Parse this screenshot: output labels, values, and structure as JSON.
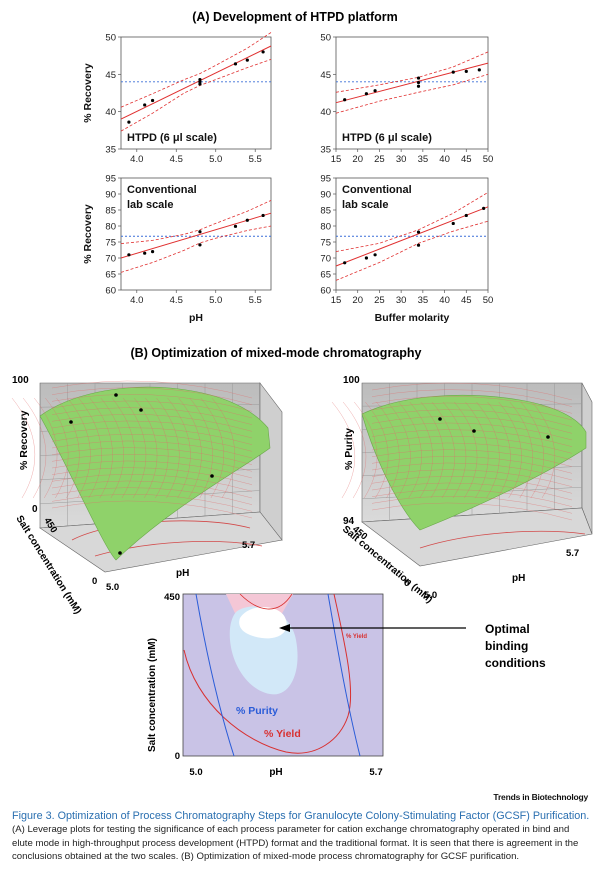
{
  "panelA": {
    "title": "(A) Development of  HTPD platform",
    "plots": [
      {
        "id": "a1",
        "ylabel": "% Recovery",
        "xlabel": "",
        "xlim": [
          3.8,
          5.7
        ],
        "ylim": [
          35,
          50
        ],
        "xticks": [
          4.0,
          4.5,
          5.0,
          5.5
        ],
        "yticks": [
          35,
          40,
          45,
          50
        ],
        "tick_labels_x": [
          "4.0",
          "4.5",
          "5.0",
          "5.5"
        ],
        "tick_labels_y": [
          "35",
          "40",
          "45",
          "50"
        ],
        "annotation": [
          "HTPD (6 μl scale)"
        ],
        "mean": 44.0,
        "fit": {
          "x": [
            3.8,
            5.7
          ],
          "y": [
            39.0,
            48.8
          ]
        },
        "ci_upper": {
          "x": [
            3.8,
            4.2,
            4.6,
            4.8,
            5.0,
            5.4,
            5.7
          ],
          "y": [
            40.6,
            42.4,
            44.3,
            45.1,
            46.2,
            48.5,
            50.6
          ]
        },
        "ci_lower": {
          "x": [
            3.8,
            4.2,
            4.6,
            4.8,
            5.0,
            5.4,
            5.7
          ],
          "y": [
            37.4,
            39.8,
            42.5,
            43.5,
            44.3,
            45.9,
            47.0
          ]
        },
        "points": {
          "x": [
            3.9,
            4.1,
            4.2,
            4.8,
            4.8,
            4.8,
            5.25,
            5.4,
            5.6
          ],
          "y": [
            38.6,
            40.9,
            41.5,
            44.3,
            44.0,
            43.7,
            46.4,
            46.9,
            48.0
          ]
        }
      },
      {
        "id": "a2",
        "ylabel": "",
        "xlabel": "",
        "xlim": [
          15,
          50
        ],
        "ylim": [
          35,
          50
        ],
        "xticks": [
          15,
          20,
          25,
          30,
          35,
          40,
          45,
          50
        ],
        "yticks": [
          35,
          40,
          45,
          50
        ],
        "tick_labels_x": [
          "15",
          "20",
          "25",
          "30",
          "35",
          "40",
          "45",
          "50"
        ],
        "tick_labels_y": [
          "35",
          "40",
          "45",
          "50"
        ],
        "annotation": [
          "HTPD (6 μl scale)"
        ],
        "mean": 44.0,
        "fit": {
          "x": [
            15,
            50
          ],
          "y": [
            41.2,
            46.5
          ]
        },
        "ci_upper": {
          "x": [
            15,
            25,
            34,
            42,
            50
          ],
          "y": [
            42.6,
            43.6,
            44.6,
            46.0,
            48.0
          ]
        },
        "ci_lower": {
          "x": [
            15,
            25,
            34,
            42,
            50
          ],
          "y": [
            39.8,
            41.4,
            42.6,
            43.6,
            45.0
          ]
        },
        "points": {
          "x": [
            17,
            22,
            24,
            34,
            34,
            34,
            42,
            45,
            48
          ],
          "y": [
            41.6,
            42.4,
            42.8,
            44.5,
            43.9,
            43.4,
            45.3,
            45.4,
            45.6
          ]
        }
      },
      {
        "id": "a3",
        "ylabel": "% Recovery",
        "xlabel": "pH",
        "xlim": [
          3.8,
          5.7
        ],
        "ylim": [
          60,
          95
        ],
        "xticks": [
          4.0,
          4.5,
          5.0,
          5.5
        ],
        "yticks": [
          60,
          65,
          70,
          75,
          80,
          85,
          90,
          95
        ],
        "tick_labels_x": [
          "4.0",
          "4.5",
          "5.0",
          "5.5"
        ],
        "tick_labels_y": [
          "60",
          "65",
          "70",
          "75",
          "80",
          "85",
          "90",
          "95"
        ],
        "annotation": [
          "Conventional",
          "lab scale"
        ],
        "mean": 76.8,
        "fit": {
          "x": [
            3.8,
            5.7
          ],
          "y": [
            70.0,
            84.0
          ]
        },
        "ci_upper": {
          "x": [
            3.8,
            4.2,
            4.6,
            4.8,
            5.0,
            5.4,
            5.7
          ],
          "y": [
            74.5,
            75.5,
            77.4,
            78.8,
            80.8,
            84.6,
            88.0
          ]
        },
        "ci_lower": {
          "x": [
            3.8,
            4.2,
            4.6,
            4.8,
            5.0,
            5.4,
            5.7
          ],
          "y": [
            65.5,
            68.6,
            72.4,
            74.7,
            76.2,
            78.6,
            80.0
          ]
        },
        "points": {
          "x": [
            3.9,
            4.1,
            4.2,
            4.8,
            4.8,
            5.25,
            5.4,
            5.6
          ],
          "y": [
            71.0,
            71.5,
            72.0,
            78.2,
            74.1,
            79.9,
            81.8,
            83.3
          ]
        }
      },
      {
        "id": "a4",
        "ylabel": "",
        "xlabel": "Buffer molarity",
        "xlim": [
          15,
          50
        ],
        "ylim": [
          60,
          95
        ],
        "xticks": [
          15,
          20,
          25,
          30,
          35,
          40,
          45,
          50
        ],
        "yticks": [
          60,
          65,
          70,
          75,
          80,
          85,
          90,
          95
        ],
        "tick_labels_x": [
          "15",
          "20",
          "25",
          "30",
          "35",
          "40",
          "45",
          "50"
        ],
        "tick_labels_y": [
          "60",
          "65",
          "70",
          "75",
          "80",
          "85",
          "90",
          "95"
        ],
        "annotation": [
          "Conventional",
          "lab scale"
        ],
        "mean": 76.8,
        "fit": {
          "x": [
            15,
            50
          ],
          "y": [
            67.5,
            86.0
          ]
        },
        "ci_upper": {
          "x": [
            15,
            25,
            34,
            42,
            50
          ],
          "y": [
            72.0,
            74.6,
            78.8,
            84.0,
            90.5
          ]
        },
        "ci_lower": {
          "x": [
            15,
            25,
            34,
            42,
            50
          ],
          "y": [
            63.0,
            68.6,
            74.6,
            78.4,
            81.5
          ]
        },
        "points": {
          "x": [
            17,
            22,
            24,
            34,
            34,
            42,
            45,
            49
          ],
          "y": [
            68.5,
            70.0,
            71.0,
            78.1,
            74.0,
            80.8,
            83.3,
            85.5
          ]
        }
      }
    ]
  },
  "panelB": {
    "title": "(B) Optimization of  mixed-mode chromatography",
    "surface_left": {
      "zlabel": "% Recovery",
      "z_top": "100",
      "z_bottom": "0",
      "salt_label": "Salt concentration (mM)",
      "salt_top": "450",
      "salt_bottom": "0",
      "ph_label": "pH",
      "ph_min": "5.0",
      "ph_max": "5.7"
    },
    "surface_right": {
      "zlabel": "% Purity",
      "z_top": "100",
      "z_bottom": "94",
      "salt_label": "Salt concentration (mM)",
      "salt_top": "450",
      "salt_bottom": "0",
      "ph_label": "pH",
      "ph_min": "5.0",
      "ph_max": "5.7"
    },
    "contour": {
      "ylabel": "Salt concentration (mM)",
      "y_top": "450",
      "y_bottom": "0",
      "xlabel": "pH",
      "x_min": "5.0",
      "x_max": "5.7",
      "label_purity": "% Purity",
      "label_yield": "% Yield",
      "label_yield_small": "% Yield"
    },
    "callout": [
      "Optimal",
      "binding",
      "conditions"
    ]
  },
  "attribution": "Trends in Biotechnology",
  "caption": {
    "figure": "Figure 3. Optimization of Process Chromatography Steps for Granulocyte Colony-Stimulating Factor (GCSF) Purification.",
    "body": " (A) Leverage plots for testing the significance of each process parameter for cation exchange chromatography operated in bind and elute mode in high-throughput process development (HTPD) format and the traditional format. It is seen that there is agreement in the conclusions obtained at the two scales. (B) Optimization of mixed-mode process chromatography for GCSF purification."
  },
  "colors": {
    "fit": "#e03030",
    "ci": "#e03030",
    "mean": "#3a6fd8",
    "surface": "#8fd26a",
    "mesh": "#e06a6a",
    "contour_bg": "#c9c3e6",
    "contour_red": "#d83030",
    "contour_blue": "#2a5cd8"
  }
}
